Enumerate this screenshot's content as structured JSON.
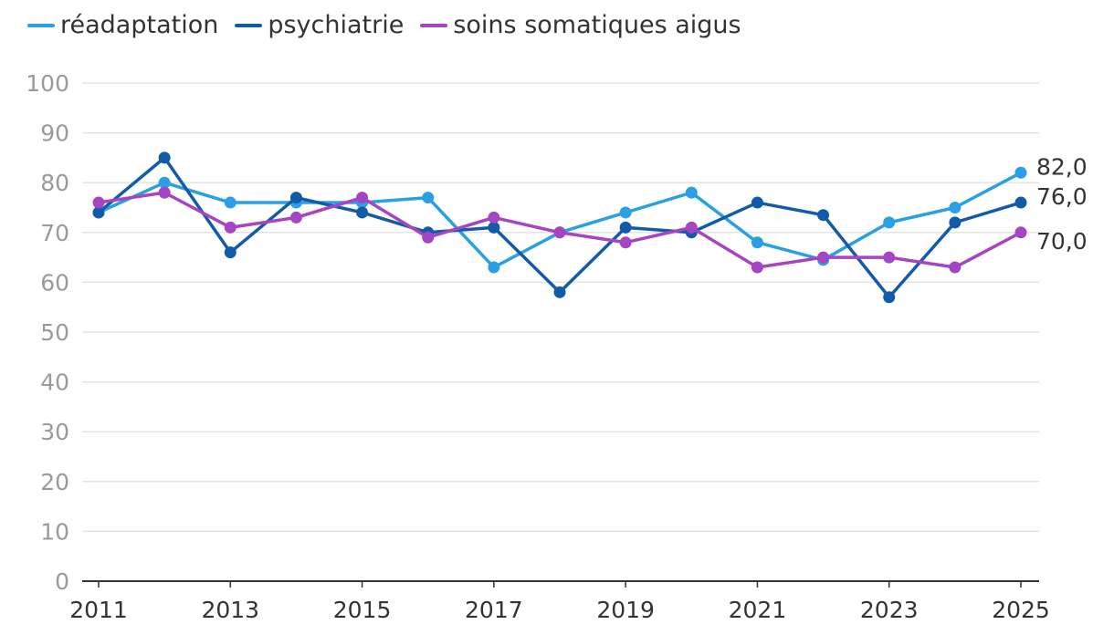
{
  "chart_data": {
    "type": "line",
    "title": "",
    "xlabel": "",
    "ylabel": "",
    "ylim": [
      0,
      100
    ],
    "yticks": [
      "0",
      "10",
      "20",
      "30",
      "40",
      "50",
      "60",
      "70",
      "80",
      "90",
      "100"
    ],
    "xticks": [
      "2011",
      "2013",
      "2015",
      "2017",
      "2019",
      "2021",
      "2023",
      "2025"
    ],
    "x": [
      2011,
      2012,
      2013,
      2014,
      2015,
      2016,
      2017,
      2018,
      2019,
      2020,
      2021,
      2022,
      2023,
      2024,
      2025
    ],
    "grid": true,
    "legend_position": "top-left",
    "series": [
      {
        "name": "réadaptation",
        "color": "#2b9fe3",
        "values": [
          74,
          80,
          76,
          76,
          76,
          77,
          63,
          70,
          74,
          78,
          68,
          64.5,
          72,
          75,
          82
        ],
        "end_label": "82,0"
      },
      {
        "name": "psychiatrie",
        "color": "#125ba8",
        "values": [
          74,
          85,
          66,
          77,
          74,
          70,
          71,
          58,
          71,
          70,
          76,
          73.5,
          57,
          72,
          76
        ],
        "end_label": "76,0"
      },
      {
        "name": "soins somatiques aigus",
        "color": "#a545c1",
        "values": [
          76,
          78,
          71,
          73,
          77,
          69,
          73,
          70,
          68,
          71,
          63,
          65,
          65,
          63,
          70
        ],
        "end_label": "70,0"
      }
    ]
  }
}
